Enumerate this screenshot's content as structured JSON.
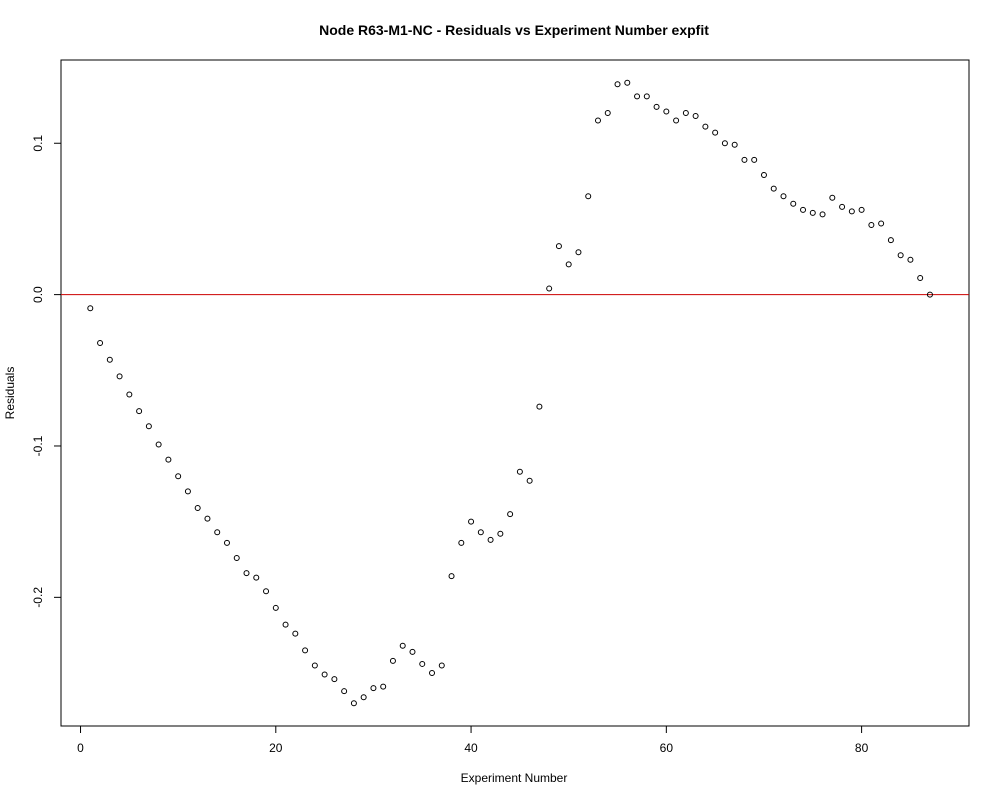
{
  "chart_data": {
    "type": "scatter",
    "title": "Node R63-M1-NC - Residuals vs Experiment Number expfit",
    "xlabel": "Experiment Number",
    "ylabel": "Residuals",
    "xlim": [
      -2,
      91
    ],
    "ylim": [
      -0.285,
      0.155
    ],
    "xticks": [
      0,
      20,
      40,
      60,
      80
    ],
    "xtick_labels": [
      "0",
      "20",
      "40",
      "60",
      "80"
    ],
    "yticks": [
      -0.2,
      -0.1,
      0.0,
      0.1
    ],
    "ytick_labels": [
      "-0.2",
      "-0.1",
      "0.0",
      "0.1"
    ],
    "grid": false,
    "reference_line": {
      "y": 0,
      "color": "#cc0000"
    },
    "marker": "open-circle",
    "x": [
      1,
      2,
      3,
      4,
      5,
      6,
      7,
      8,
      9,
      10,
      11,
      12,
      13,
      14,
      15,
      16,
      17,
      18,
      19,
      20,
      21,
      22,
      23,
      24,
      25,
      26,
      27,
      28,
      29,
      30,
      31,
      32,
      33,
      34,
      35,
      36,
      37,
      38,
      39,
      40,
      41,
      42,
      43,
      44,
      45,
      46,
      47,
      48,
      49,
      50,
      51,
      52,
      53,
      54,
      55,
      56,
      57,
      58,
      59,
      60,
      61,
      62,
      63,
      64,
      65,
      66,
      67,
      68,
      69,
      70,
      71,
      72,
      73,
      74,
      75,
      76,
      77,
      78,
      79,
      80,
      81,
      82,
      83,
      84,
      85,
      86,
      87
    ],
    "y": [
      -0.009,
      -0.032,
      -0.043,
      -0.054,
      -0.066,
      -0.077,
      -0.087,
      -0.099,
      -0.109,
      -0.12,
      -0.13,
      -0.141,
      -0.148,
      -0.157,
      -0.164,
      -0.174,
      -0.184,
      -0.187,
      -0.196,
      -0.207,
      -0.218,
      -0.224,
      -0.235,
      -0.245,
      -0.251,
      -0.254,
      -0.262,
      -0.27,
      -0.266,
      -0.26,
      -0.259,
      -0.242,
      -0.232,
      -0.236,
      -0.244,
      -0.25,
      -0.245,
      -0.186,
      -0.164,
      -0.15,
      -0.157,
      -0.162,
      -0.158,
      -0.145,
      -0.117,
      -0.123,
      -0.074,
      0.004,
      0.032,
      0.02,
      0.028,
      0.065,
      0.115,
      0.12,
      0.139,
      0.14,
      0.131,
      0.131,
      0.124,
      0.121,
      0.115,
      0.12,
      0.118,
      0.111,
      0.107,
      0.1,
      0.099,
      0.089,
      0.089,
      0.079,
      0.07,
      0.065,
      0.06,
      0.056,
      0.054,
      0.053,
      0.064,
      0.058,
      0.055,
      0.056,
      0.046,
      0.047,
      0.036,
      0.026,
      0.023,
      0.011,
      0.0
    ]
  }
}
